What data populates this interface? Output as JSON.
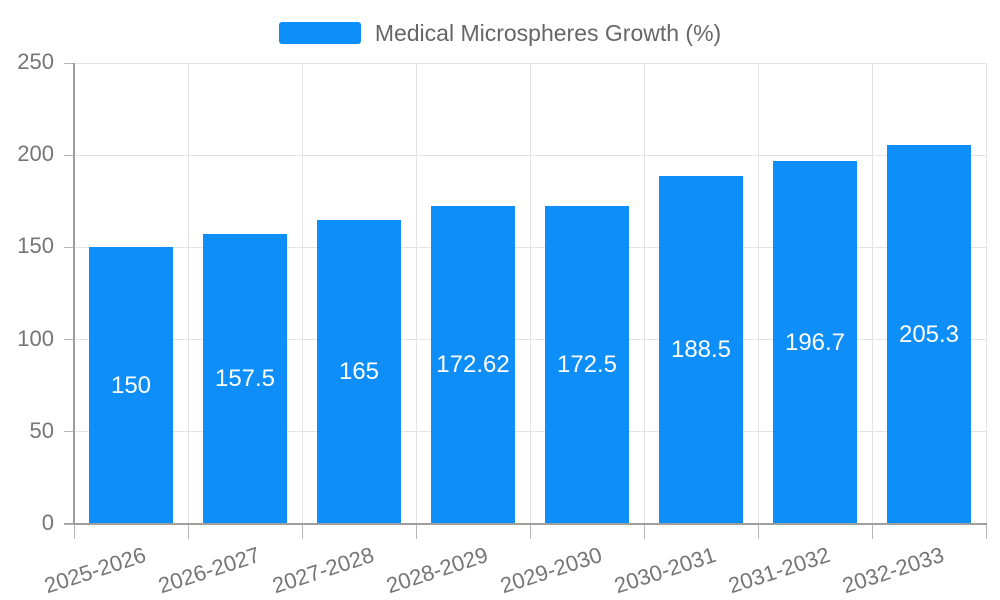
{
  "chart_data": {
    "type": "bar",
    "title": "Medical Microspheres Growth (%)",
    "legend": {
      "label": "Medical Microspheres Growth (%)",
      "position": "top-center"
    },
    "categories": [
      "2025-2026",
      "2026-2027",
      "2027-2028",
      "2028-2029",
      "2029-2030",
      "2030-2031",
      "2031-2032",
      "2032-2033"
    ],
    "values": [
      150,
      157.5,
      165,
      172.62,
      172.5,
      188.5,
      196.7,
      205.3
    ],
    "value_labels": [
      "150",
      "157.5",
      "165",
      "172.62",
      "172.5",
      "188.5",
      "196.7",
      "205.3"
    ],
    "xlabel": "",
    "ylabel": "",
    "ylim": [
      0,
      250
    ],
    "yticks": [
      0,
      50,
      100,
      150,
      200,
      250
    ],
    "grid": true,
    "x_label_rotation_deg": -18,
    "colors": {
      "bar": "#0d8ef8",
      "grid": "#e3e3e3",
      "axis": "#9e9e9e",
      "tick": "#b5b5b5",
      "tick_text": "#757575",
      "value_label": "#ffffff",
      "legend_text": "#666666",
      "background": "#ffffff"
    }
  }
}
